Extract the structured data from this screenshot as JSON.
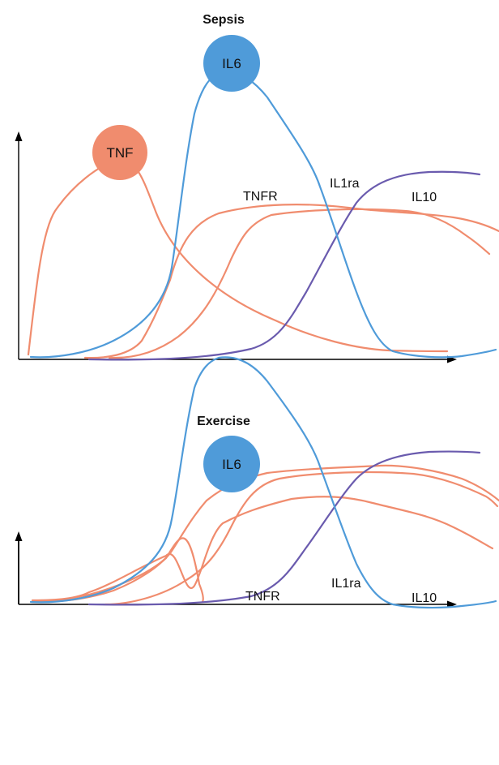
{
  "colors": {
    "tnf": "#F08C6E",
    "il6": "#4F9BD9",
    "il10": "#6A5BAE",
    "axis": "#000000"
  },
  "panels": [
    {
      "title": "Sepsis",
      "labels": {
        "tnf": "TNF",
        "il6": "IL6",
        "tnfr": "TNFR",
        "il1ra": "IL1ra",
        "il10": "IL10"
      }
    },
    {
      "title": "Exercise",
      "labels": {
        "il6": "IL6",
        "tnfr": "TNFR",
        "il1ra": "IL1ra",
        "il10": "IL10"
      }
    }
  ]
}
